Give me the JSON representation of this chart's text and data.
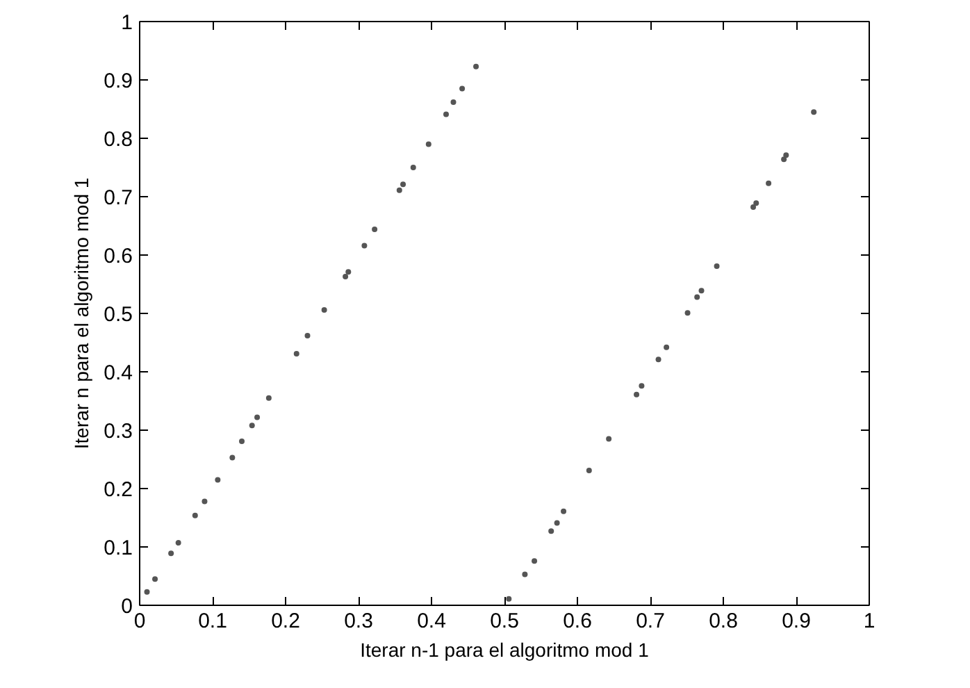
{
  "chart_data": {
    "type": "scatter",
    "xlabel": "Iterar n-1 para el algoritmo mod 1",
    "ylabel": "Iterar n para el algoritmo mod 1",
    "x": [
      0.01,
      0.021,
      0.043,
      0.053,
      0.076,
      0.089,
      0.107,
      0.127,
      0.14,
      0.154,
      0.161,
      0.177,
      0.215,
      0.23,
      0.253,
      0.282,
      0.286,
      0.308,
      0.322,
      0.356,
      0.361,
      0.375,
      0.396,
      0.42,
      0.43,
      0.442,
      0.461,
      0.506,
      0.528,
      0.541,
      0.564,
      0.572,
      0.581,
      0.616,
      0.643,
      0.681,
      0.688,
      0.711,
      0.722,
      0.751,
      0.764,
      0.77,
      0.791,
      0.841,
      0.845,
      0.862,
      0.883,
      0.886,
      0.924
    ],
    "series": [
      {
        "color": "#555555",
        "values": [
          0.023,
          0.045,
          0.089,
          0.107,
          0.154,
          0.178,
          0.215,
          0.253,
          0.281,
          0.308,
          0.322,
          0.355,
          0.431,
          0.462,
          0.506,
          0.563,
          0.571,
          0.616,
          0.644,
          0.711,
          0.721,
          0.75,
          0.79,
          0.841,
          0.862,
          0.885,
          0.923,
          0.011,
          0.053,
          0.076,
          0.127,
          0.141,
          0.161,
          0.231,
          0.285,
          0.361,
          0.376,
          0.421,
          0.442,
          0.501,
          0.528,
          0.539,
          0.581,
          0.682,
          0.689,
          0.723,
          0.764,
          0.771,
          0.845
        ]
      }
    ],
    "xlim": [
      0,
      1
    ],
    "ylim": [
      0,
      1
    ],
    "xticks": [
      0,
      0.1,
      0.2,
      0.3,
      0.4,
      0.5,
      0.6,
      0.7,
      0.8,
      0.9,
      1
    ],
    "yticks": [
      0,
      0.1,
      0.2,
      0.3,
      0.4,
      0.5,
      0.6,
      0.7,
      0.8,
      0.9,
      1
    ],
    "marker": "circle",
    "grid": false
  }
}
